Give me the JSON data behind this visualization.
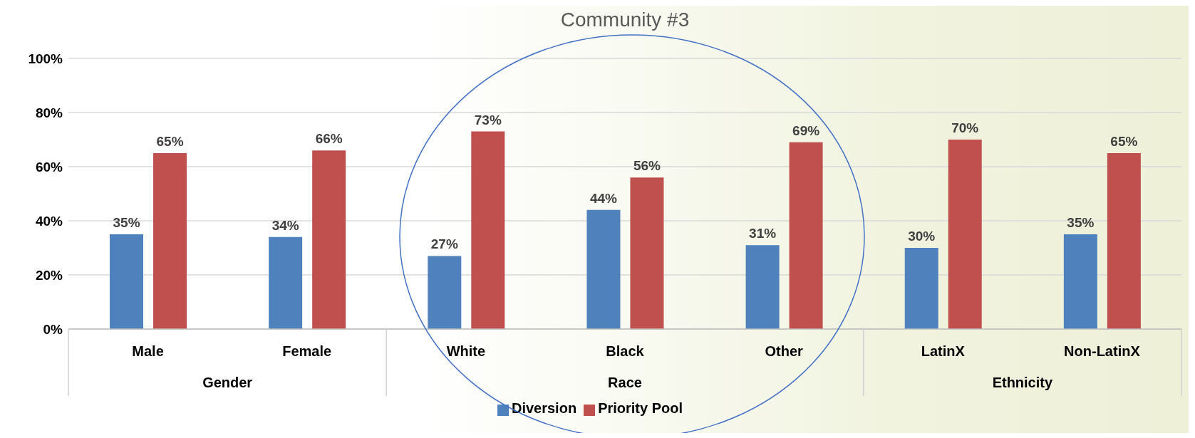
{
  "chart_data": {
    "type": "bar",
    "title": "Community #3",
    "categories": [
      "Male",
      "Female",
      "White",
      "Black",
      "Other",
      "LatinX",
      "Non-LatinX"
    ],
    "series": [
      {
        "name": "Diversion",
        "color": "#4f81bd",
        "values": [
          35,
          34,
          27,
          44,
          31,
          30,
          35
        ],
        "value_labels": [
          "35%",
          "34%",
          "27%",
          "44%",
          "31%",
          "30%",
          "35%"
        ]
      },
      {
        "name": "Priority Pool",
        "color": "#c0504d",
        "values": [
          65,
          66,
          73,
          56,
          69,
          70,
          65
        ],
        "value_labels": [
          "65%",
          "66%",
          "73%",
          "56%",
          "69%",
          "70%",
          "65%"
        ]
      }
    ],
    "ylim": [
      0,
      100
    ],
    "yticks": [
      {
        "value": 0,
        "label": "0%"
      },
      {
        "value": 20,
        "label": "20%"
      },
      {
        "value": 40,
        "label": "40%"
      },
      {
        "value": 60,
        "label": "60%"
      },
      {
        "value": 80,
        "label": "80%"
      },
      {
        "value": 100,
        "label": "100%"
      }
    ],
    "grid": "y",
    "legend": "bottom",
    "annotations": [
      "Gender",
      "Race",
      "Ethnicity"
    ]
  }
}
